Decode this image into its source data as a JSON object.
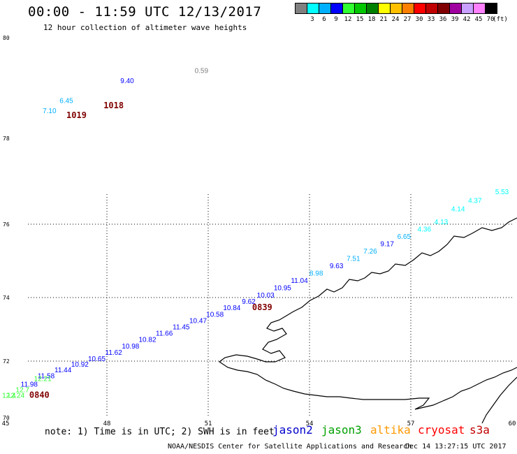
{
  "header": {
    "title": "00:00 - 11:59 UTC 12/13/2017",
    "subtitle": "12 hour collection of altimeter wave heights"
  },
  "legend": {
    "colors": [
      "#808080",
      "#00ffff",
      "#00b0ff",
      "#0000ff",
      "#30ff30",
      "#00c800",
      "#008000",
      "#ffff00",
      "#ffc000",
      "#ff8000",
      "#ff0000",
      "#c00000",
      "#800000",
      "#a000a0",
      "#c8a0ff",
      "#ff80ff",
      "#000000"
    ],
    "labels": [
      "3",
      "6",
      "9",
      "12",
      "15",
      "18",
      "21",
      "24",
      "27",
      "30",
      "33",
      "36",
      "39",
      "42",
      "45",
      "70"
    ],
    "unit": "(ft)"
  },
  "footer": {
    "note": "note: 1) Time is in UTC; 2) SWH is in feet",
    "satellites": [
      {
        "name": "jason2",
        "color": "#0000cc"
      },
      {
        "name": "jason3",
        "color": "#00a000"
      },
      {
        "name": "altika",
        "color": "#ff9900"
      },
      {
        "name": "cryosat",
        "color": "#ff0000"
      },
      {
        "name": "s3a",
        "color": "#c00000"
      }
    ],
    "credit": "NOAA/NESDIS Center for Satellite Applications and Research",
    "stamp": "Dec 14 13:27:15 UTC 2017"
  },
  "chart_data": {
    "type": "scatter",
    "xlim": [
      45,
      60
    ],
    "ylim": [
      70,
      80
    ],
    "xticks": [
      "45",
      "48",
      "51",
      "54",
      "57",
      "60"
    ],
    "yticks": [
      "70",
      "72",
      "74",
      "76",
      "78",
      "80"
    ],
    "grid": true,
    "points": [
      {
        "x": 50.8,
        "y": 79.3,
        "label": "0.59",
        "color": "#808080"
      },
      {
        "x": 46.3,
        "y": 78.5,
        "label": "7.10",
        "color": "#00b0ff"
      },
      {
        "x": 46.8,
        "y": 78.7,
        "label": "6.45",
        "color": "#00b0ff"
      },
      {
        "x": 48.6,
        "y": 79.1,
        "label": "9.40",
        "color": "#0000ff"
      },
      {
        "x": 47.1,
        "y": 78.4,
        "label": "1019",
        "color": "#800000"
      },
      {
        "x": 48.2,
        "y": 78.6,
        "label": "1018",
        "color": "#800000"
      },
      {
        "x": 59.7,
        "y": 76.7,
        "label": "5.53",
        "color": "#00ffff"
      },
      {
        "x": 58.9,
        "y": 76.5,
        "label": "4.37",
        "color": "#00ffff"
      },
      {
        "x": 58.4,
        "y": 76.3,
        "label": "4.14",
        "color": "#00ffff"
      },
      {
        "x": 57.9,
        "y": 76.0,
        "label": "4.13",
        "color": "#00ffff"
      },
      {
        "x": 57.4,
        "y": 75.8,
        "label": "4.36",
        "color": "#00ffff"
      },
      {
        "x": 56.8,
        "y": 75.6,
        "label": "6.65",
        "color": "#00b0ff"
      },
      {
        "x": 56.3,
        "y": 75.4,
        "label": "9.17",
        "color": "#0000ff"
      },
      {
        "x": 55.8,
        "y": 75.2,
        "label": "7.26",
        "color": "#00b0ff"
      },
      {
        "x": 55.3,
        "y": 75.0,
        "label": "7.51",
        "color": "#00b0ff"
      },
      {
        "x": 54.8,
        "y": 74.8,
        "label": "9.63",
        "color": "#0000ff"
      },
      {
        "x": 54.2,
        "y": 74.6,
        "label": "8.98",
        "color": "#00b0ff"
      },
      {
        "x": 53.7,
        "y": 74.4,
        "label": "11.04",
        "color": "#0000ff"
      },
      {
        "x": 53.2,
        "y": 74.2,
        "label": "10.95",
        "color": "#0000ff"
      },
      {
        "x": 52.7,
        "y": 74.0,
        "label": "10.03",
        "color": "#0000ff"
      },
      {
        "x": 52.2,
        "y": 73.8,
        "label": "9.62",
        "color": "#0000ff"
      },
      {
        "x": 51.7,
        "y": 73.6,
        "label": "10.84",
        "color": "#0000ff"
      },
      {
        "x": 51.2,
        "y": 73.4,
        "label": "10.58",
        "color": "#0000ff"
      },
      {
        "x": 50.7,
        "y": 73.2,
        "label": "10.47",
        "color": "#0000ff"
      },
      {
        "x": 50.2,
        "y": 73.0,
        "label": "11.45",
        "color": "#0000ff"
      },
      {
        "x": 49.7,
        "y": 72.8,
        "label": "11.66",
        "color": "#0000ff"
      },
      {
        "x": 49.2,
        "y": 72.6,
        "label": "10.82",
        "color": "#0000ff"
      },
      {
        "x": 48.7,
        "y": 72.4,
        "label": "10.98",
        "color": "#0000ff"
      },
      {
        "x": 48.2,
        "y": 72.2,
        "label": "11.62",
        "color": "#0000ff"
      },
      {
        "x": 47.7,
        "y": 72.0,
        "label": "10.65",
        "color": "#0000ff"
      },
      {
        "x": 47.2,
        "y": 71.8,
        "label": "10.92",
        "color": "#0000ff"
      },
      {
        "x": 46.7,
        "y": 71.6,
        "label": "11.44",
        "color": "#0000ff"
      },
      {
        "x": 46.2,
        "y": 71.4,
        "label": "11.58",
        "color": "#0000ff"
      },
      {
        "x": 45.7,
        "y": 71.1,
        "label": "11.98",
        "color": "#0000ff"
      },
      {
        "x": 46.1,
        "y": 71.3,
        "label": "12.21",
        "color": "#30ff30"
      },
      {
        "x": 45.5,
        "y": 70.9,
        "label": "12.7",
        "color": "#30ff30"
      },
      {
        "x": 45.3,
        "y": 70.7,
        "label": "12.24",
        "color": "#30ff30"
      },
      {
        "x": 45.1,
        "y": 70.7,
        "label": "12.4",
        "color": "#30ff30"
      },
      {
        "x": 46.0,
        "y": 70.7,
        "label": "0840",
        "color": "#800000"
      },
      {
        "x": 52.6,
        "y": 73.6,
        "label": "0839",
        "color": "#800000"
      }
    ]
  }
}
